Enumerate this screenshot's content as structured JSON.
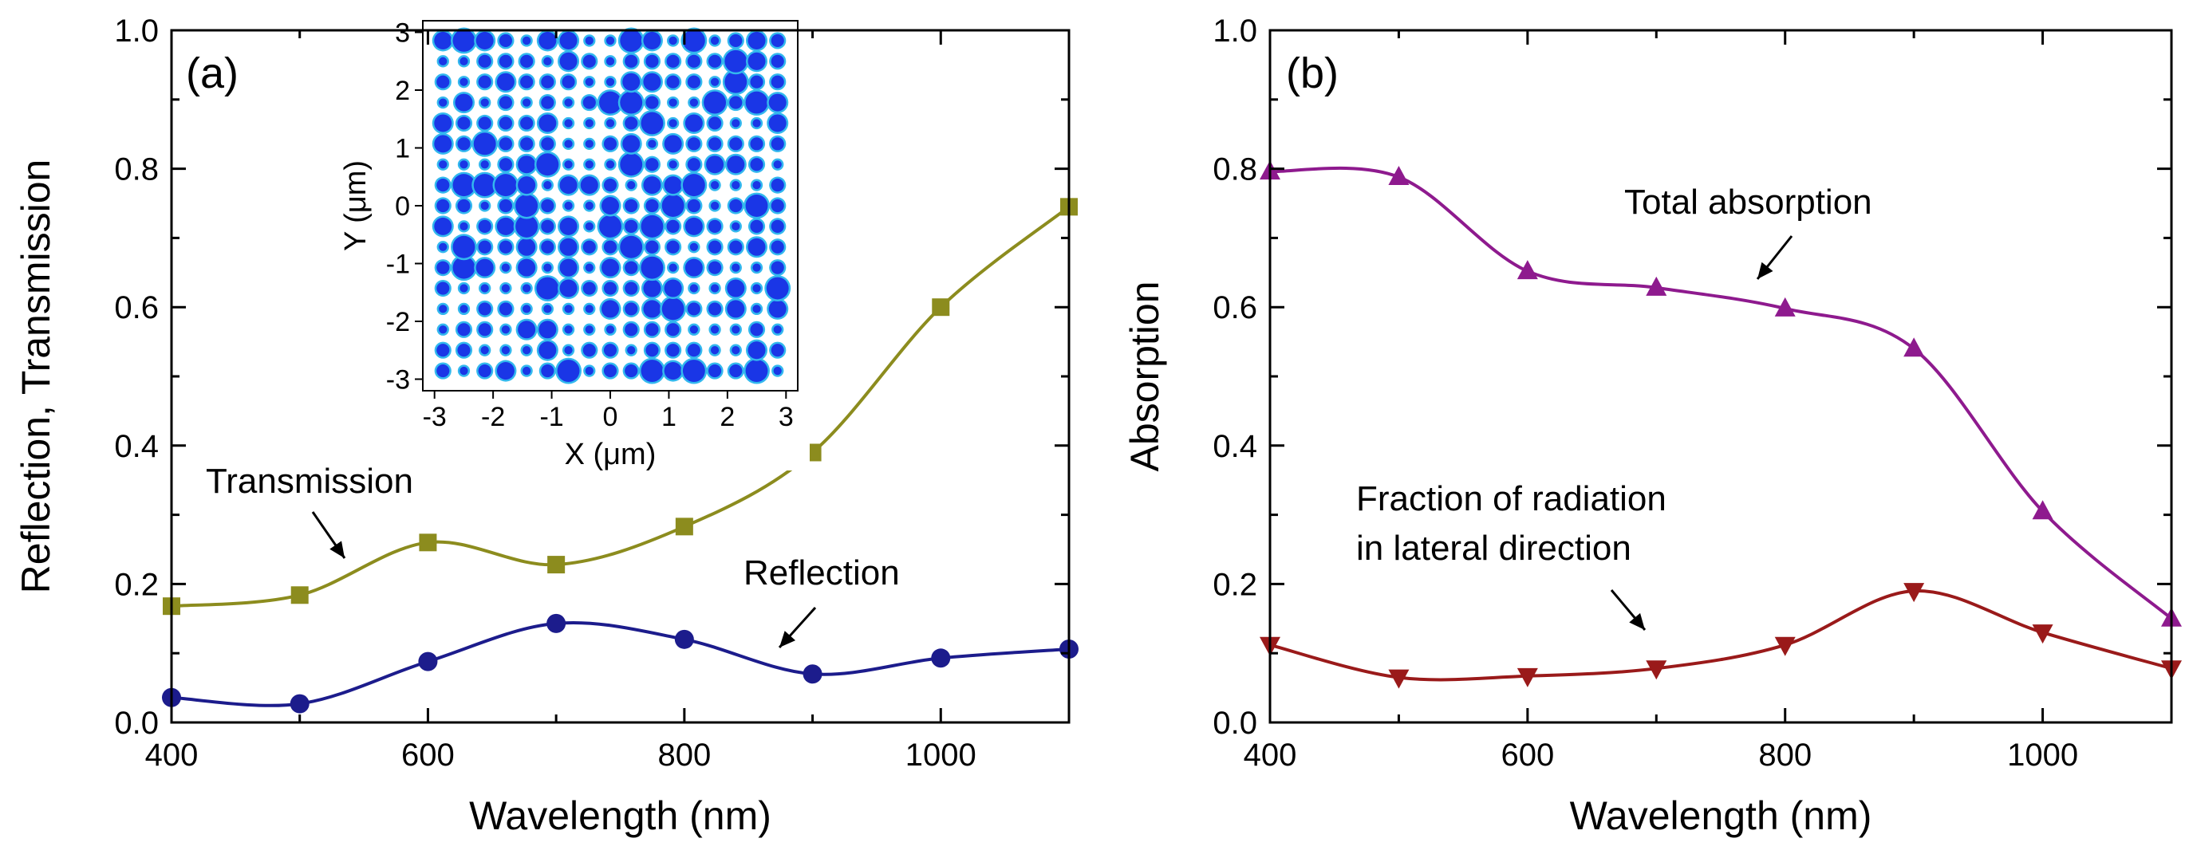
{
  "chart_data": [
    {
      "panel_label": "(a)",
      "type": "line",
      "xlabel": "Wavelength (nm)",
      "ylabel": "Reflection, Transmission",
      "xlim": [
        400,
        1100
      ],
      "ylim": [
        0,
        1.0
      ],
      "xticks": [
        400,
        600,
        800,
        1000
      ],
      "yticks": [
        0.0,
        0.2,
        0.4,
        0.6,
        0.8,
        1.0
      ],
      "xtick_labels": [
        "400",
        "600",
        "800",
        "1000"
      ],
      "ytick_labels": [
        "0.0",
        "0.2",
        "0.4",
        "0.6",
        "0.8",
        "1.0"
      ],
      "series": [
        {
          "name": "Transmission",
          "color": "#8c8c1e",
          "marker": "square",
          "x": [
            400,
            500,
            600,
            700,
            800,
            900,
            1000,
            1100
          ],
          "y": [
            0.168,
            0.184,
            0.26,
            0.228,
            0.283,
            0.39,
            0.6,
            0.745
          ]
        },
        {
          "name": "Reflection",
          "color": "#1c1c8c",
          "marker": "circle",
          "x": [
            400,
            500,
            600,
            700,
            800,
            900,
            1000,
            1100
          ],
          "y": [
            0.036,
            0.027,
            0.088,
            0.143,
            0.12,
            0.07,
            0.093,
            0.106
          ]
        }
      ],
      "annotations": [
        {
          "text": "Transmission",
          "target": "Transmission"
        },
        {
          "text": "Reflection",
          "target": "Reflection"
        }
      ],
      "inset": {
        "type": "scatter",
        "xlabel": "X (μm)",
        "ylabel": "Y (μm)",
        "xlim": [
          -3.2,
          3.2
        ],
        "ylim": [
          -3.2,
          3.2
        ],
        "xticks": [
          -3,
          -2,
          -1,
          0,
          1,
          2,
          3
        ],
        "yticks": [
          -3,
          -2,
          -1,
          0,
          1,
          2,
          3
        ],
        "xtick_labels": [
          "-3",
          "-2",
          "-1",
          "0",
          "1",
          "2",
          "3"
        ],
        "ytick_labels": [
          "-3",
          "-2",
          "-1",
          "0",
          "1",
          "2",
          "3"
        ],
        "grid_spacing_um": 0.357,
        "particle_color": "#1a36e6",
        "halo_color": "#33b8ee"
      }
    },
    {
      "panel_label": "(b)",
      "type": "line",
      "xlabel": "Wavelength (nm)",
      "ylabel": "Absorption",
      "xlim": [
        400,
        1100
      ],
      "ylim": [
        0,
        1.0
      ],
      "xticks": [
        400,
        600,
        800,
        1000
      ],
      "yticks": [
        0.0,
        0.2,
        0.4,
        0.6,
        0.8,
        1.0
      ],
      "xtick_labels": [
        "400",
        "600",
        "800",
        "1000"
      ],
      "ytick_labels": [
        "0.0",
        "0.2",
        "0.4",
        "0.6",
        "0.8",
        "1.0"
      ],
      "series": [
        {
          "name": "Total absorption",
          "color": "#8e1a8e",
          "marker": "triangle-up",
          "x": [
            400,
            500,
            600,
            700,
            800,
            900,
            1000,
            1100
          ],
          "y": [
            0.796,
            0.788,
            0.652,
            0.628,
            0.598,
            0.54,
            0.305,
            0.15
          ]
        },
        {
          "name": "Fraction of radiation in lateral direction",
          "color": "#9a1a1a",
          "marker": "triangle-down",
          "x": [
            400,
            500,
            600,
            700,
            800,
            900,
            1000,
            1100
          ],
          "y": [
            0.112,
            0.065,
            0.067,
            0.078,
            0.112,
            0.19,
            0.13,
            0.078
          ]
        }
      ],
      "annotations": [
        {
          "text": "Total absorption",
          "target": "Total absorption"
        },
        {
          "text": "Fraction of radiation",
          "target": "Fraction of radiation in lateral direction"
        },
        {
          "text": "in lateral direction",
          "target": "Fraction of radiation in lateral direction"
        }
      ]
    }
  ]
}
